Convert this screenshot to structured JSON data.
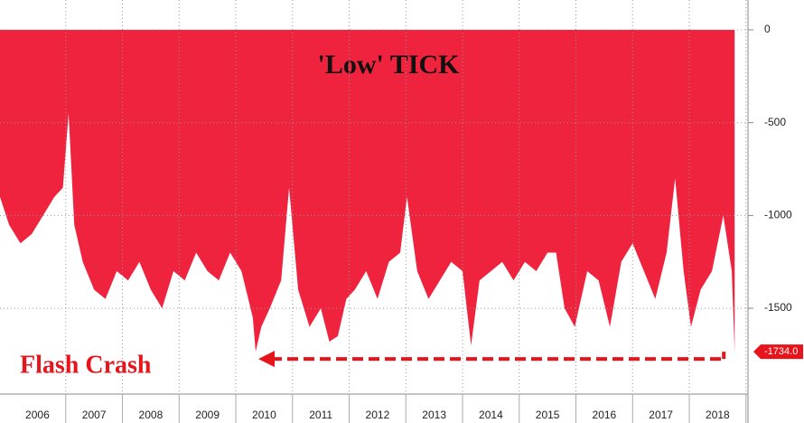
{
  "chart_data": {
    "type": "area",
    "title": "'Low' TICK",
    "annotation": "Flash Crash",
    "color": "#f0233f",
    "x": [
      2005.84,
      2006.0,
      2006.2,
      2006.4,
      2006.6,
      2006.8,
      2006.95,
      2007.05,
      2007.15,
      2007.3,
      2007.5,
      2007.7,
      2007.9,
      2008.1,
      2008.3,
      2008.5,
      2008.7,
      2008.9,
      2009.1,
      2009.3,
      2009.5,
      2009.7,
      2009.9,
      2010.1,
      2010.3,
      2010.35,
      2010.45,
      2010.6,
      2010.8,
      2010.94,
      2011.1,
      2011.3,
      2011.5,
      2011.65,
      2011.8,
      2011.95,
      2012.1,
      2012.3,
      2012.5,
      2012.7,
      2012.9,
      2013.02,
      2013.2,
      2013.4,
      2013.6,
      2013.8,
      2014.0,
      2014.15,
      2014.3,
      2014.5,
      2014.7,
      2014.9,
      2015.1,
      2015.3,
      2015.5,
      2015.65,
      2015.8,
      2015.98,
      2016.2,
      2016.4,
      2016.6,
      2016.8,
      2017.0,
      2017.2,
      2017.4,
      2017.6,
      2017.75,
      2017.9,
      2018.03,
      2018.2,
      2018.4,
      2018.6,
      2018.75,
      2018.8
    ],
    "values": [
      -900,
      -1050,
      -1150,
      -1100,
      -1000,
      -900,
      -850,
      -450,
      -1050,
      -1250,
      -1400,
      -1450,
      -1300,
      -1350,
      -1250,
      -1400,
      -1500,
      -1300,
      -1350,
      -1200,
      -1300,
      -1350,
      -1200,
      -1300,
      -1550,
      -1734,
      -1600,
      -1500,
      -1350,
      -850,
      -1400,
      -1600,
      -1500,
      -1680,
      -1650,
      -1450,
      -1400,
      -1300,
      -1450,
      -1250,
      -1200,
      -900,
      -1300,
      -1450,
      -1350,
      -1250,
      -1300,
      -1700,
      -1350,
      -1300,
      -1250,
      -1350,
      -1250,
      -1300,
      -1200,
      -1200,
      -1500,
      -1600,
      -1300,
      -1350,
      -1600,
      -1250,
      -1150,
      -1300,
      -1450,
      -1200,
      -800,
      -1300,
      -1600,
      -1400,
      -1300,
      -1000,
      -1300,
      -1734
    ],
    "last_value_label": "-1734.0",
    "xlim": [
      2005.84,
      2018.94
    ],
    "xticks": [
      {
        "value": 2006.5,
        "label": "2006"
      },
      {
        "value": 2007.5,
        "label": "2007"
      },
      {
        "value": 2008.5,
        "label": "2008"
      },
      {
        "value": 2009.5,
        "label": "2009"
      },
      {
        "value": 2010.5,
        "label": "2010"
      },
      {
        "value": 2011.5,
        "label": "2011"
      },
      {
        "value": 2012.5,
        "label": "2012"
      },
      {
        "value": 2013.5,
        "label": "2013"
      },
      {
        "value": 2014.5,
        "label": "2014"
      },
      {
        "value": 2015.5,
        "label": "2015"
      },
      {
        "value": 2016.5,
        "label": "2016"
      },
      {
        "value": 2017.5,
        "label": "2017"
      },
      {
        "value": 2018.5,
        "label": "2018"
      }
    ],
    "ylim": [
      -1950,
      0
    ],
    "yticks": [
      0,
      -500,
      -1000,
      -1500
    ],
    "grid": true
  }
}
